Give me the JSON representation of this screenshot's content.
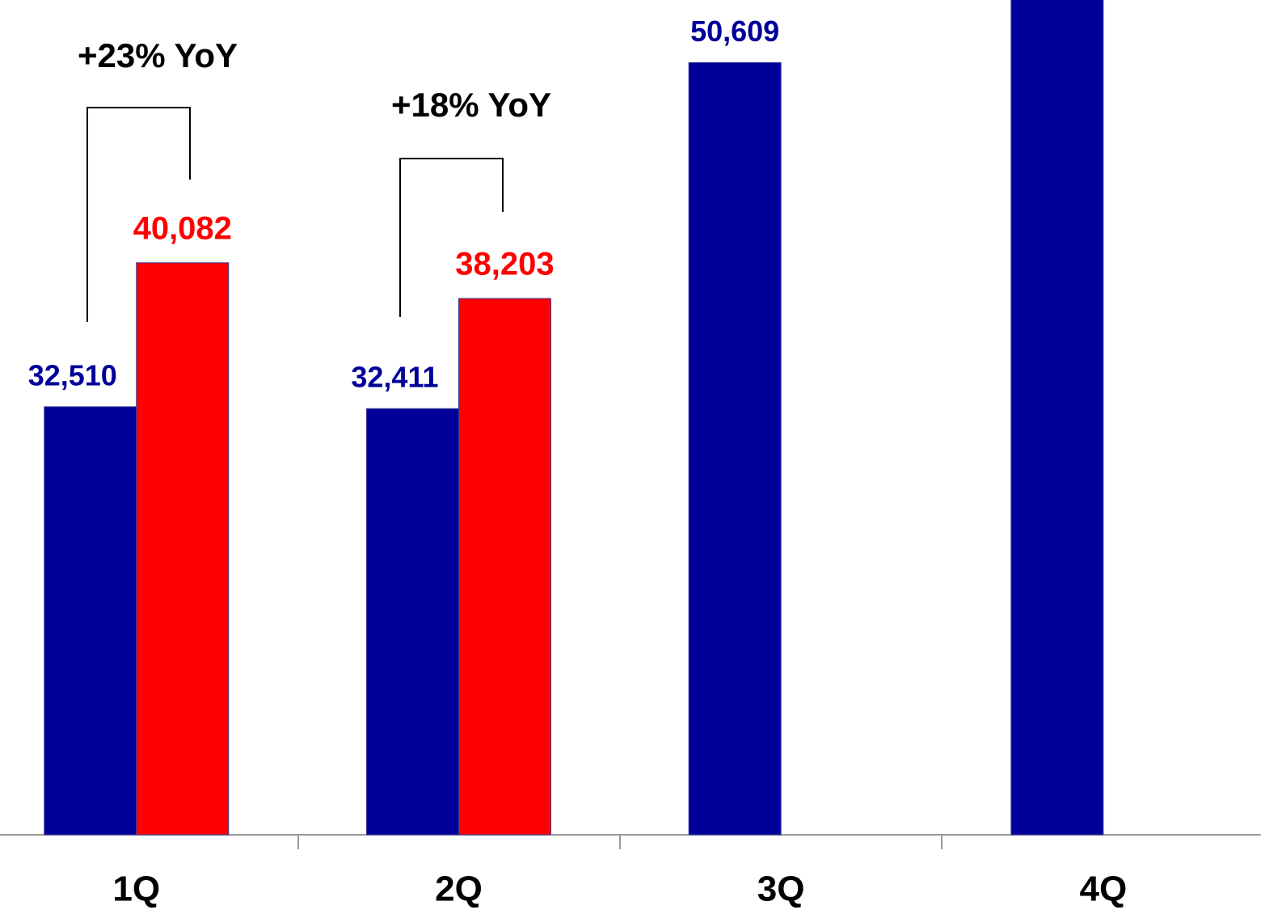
{
  "chart_data": {
    "type": "bar",
    "categories": [
      "1Q",
      "2Q",
      "3Q",
      "4Q"
    ],
    "series": [
      {
        "color": "#000099",
        "values": [
          32510,
          32411,
          50609,
          55000
        ],
        "value_labels": [
          "32,510",
          "32,411",
          "50,609",
          null
        ]
      },
      {
        "color": "#ff0000",
        "values": [
          40082,
          38203,
          null,
          null
        ],
        "value_labels": [
          "40,082",
          "38,203",
          null,
          null
        ]
      }
    ],
    "annotations": [
      "+23% YoY",
      "+18% YoY"
    ],
    "ylim": [
      10000,
      53900
    ]
  }
}
